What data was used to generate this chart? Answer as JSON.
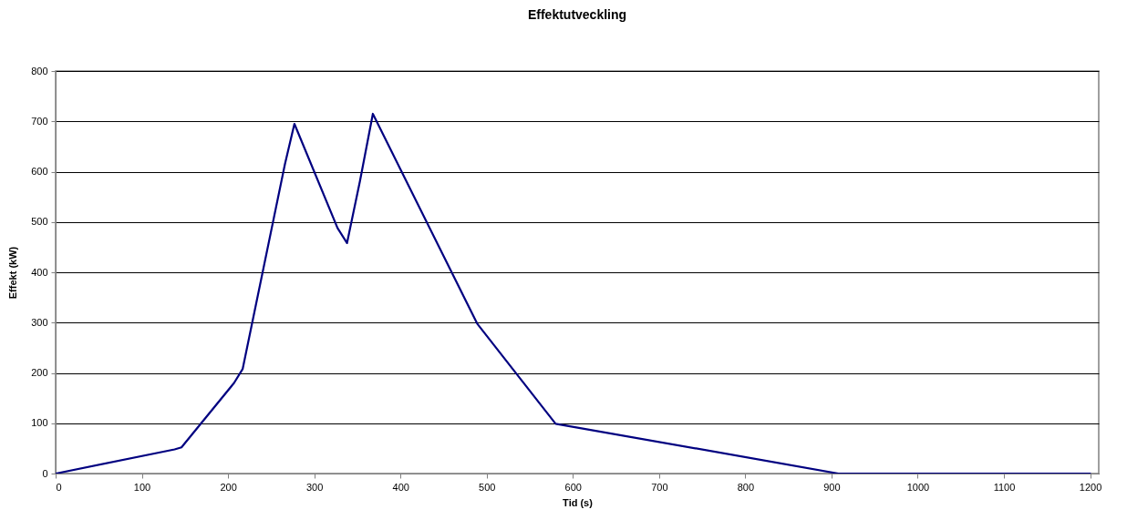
{
  "chart_data": {
    "type": "line",
    "title": "Effektutveckling",
    "xlabel": "Tid (s)",
    "ylabel": "Effekt (kW)",
    "x": [
      0,
      138,
      146,
      207,
      217,
      266,
      277,
      327,
      338,
      353,
      368,
      489,
      580,
      908,
      1200
    ],
    "series": [
      {
        "color": "#000080",
        "values": [
          0,
          48,
          52,
          180,
          208,
          615,
          695,
          488,
          458,
          581,
          715,
          298,
          99,
          0,
          0
        ]
      }
    ],
    "xlim": [
      0,
      1210
    ],
    "xticks": [
      0,
      100,
      200,
      300,
      400,
      500,
      600,
      700,
      800,
      900,
      1000,
      1100,
      1200
    ],
    "ylim": [
      0,
      800
    ],
    "yticks": [
      0,
      100,
      200,
      300,
      400,
      500,
      600,
      700,
      800
    ],
    "grid": "y",
    "marker": "none",
    "line_style": "solid"
  }
}
